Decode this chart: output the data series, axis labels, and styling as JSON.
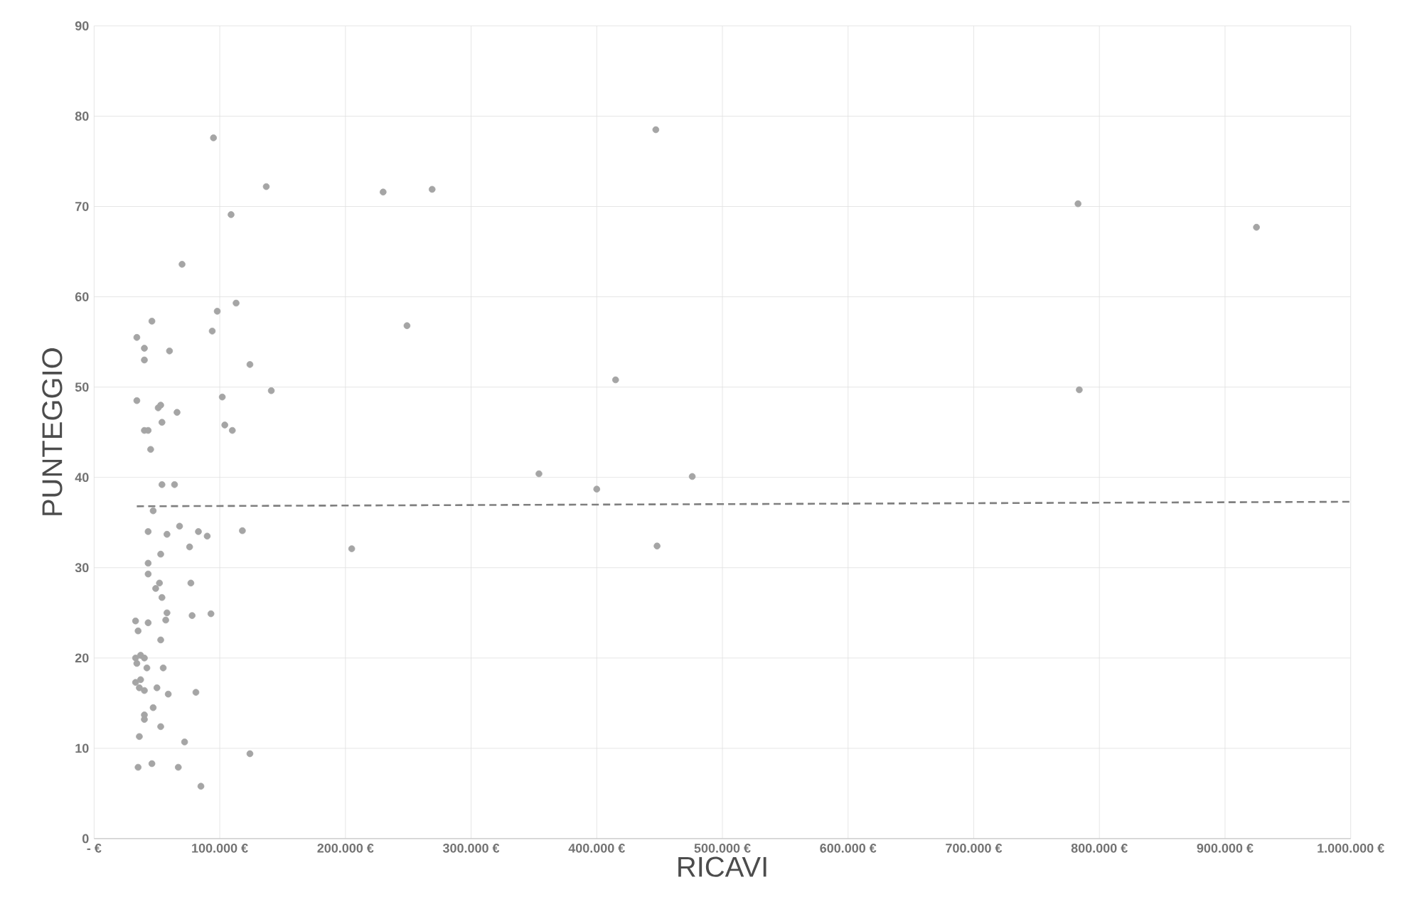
{
  "chart_data": {
    "type": "scatter",
    "xlabel": "RICAVI",
    "ylabel": "PUNTEGGIO",
    "xlim": [
      0,
      1000000
    ],
    "ylim": [
      0,
      90
    ],
    "xticks": [
      {
        "value": 0,
        "label": "- €"
      },
      {
        "value": 100000,
        "label": "100.000 €"
      },
      {
        "value": 200000,
        "label": "200.000 €"
      },
      {
        "value": 300000,
        "label": "300.000 €"
      },
      {
        "value": 400000,
        "label": "400.000 €"
      },
      {
        "value": 500000,
        "label": "500.000 €"
      },
      {
        "value": 600000,
        "label": "600.000 €"
      },
      {
        "value": 700000,
        "label": "700.000 €"
      },
      {
        "value": 800000,
        "label": "800.000 €"
      },
      {
        "value": 900000,
        "label": "900.000 €"
      },
      {
        "value": 1000000,
        "label": "1.000.000 €"
      }
    ],
    "yticks": [
      0,
      10,
      20,
      30,
      40,
      50,
      60,
      70,
      80,
      90
    ],
    "grid": true,
    "series": [
      {
        "color": "#a5a5a5",
        "marker": "circle",
        "x": [
          34000,
          40000,
          40000,
          46000,
          34000,
          60000,
          95000,
          137000,
          109000,
          70000,
          98000,
          113000,
          94000,
          124000,
          141000,
          102000,
          104000,
          110000,
          51000,
          53000,
          54000,
          66000,
          40000,
          43000,
          45000,
          54000,
          64000,
          47000,
          43000,
          58000,
          68000,
          83000,
          90000,
          118000,
          76000,
          53000,
          43000,
          43000,
          49000,
          52000,
          77000,
          54000,
          58000,
          57000,
          33000,
          43000,
          78000,
          93000,
          35000,
          53000,
          33000,
          37000,
          40000,
          34000,
          42000,
          55000,
          33000,
          37000,
          36000,
          40000,
          50000,
          59000,
          81000,
          47000,
          40000,
          40000,
          53000,
          36000,
          72000,
          124000,
          35000,
          46000,
          67000,
          85000,
          230000,
          269000,
          249000,
          205000,
          447000,
          415000,
          354000,
          400000,
          476000,
          448000,
          783000,
          784000,
          925000
        ],
        "values": [
          55.5,
          54.3,
          53.0,
          57.3,
          48.5,
          54.0,
          77.6,
          72.2,
          69.1,
          63.6,
          58.4,
          59.3,
          56.2,
          52.5,
          49.6,
          48.9,
          45.8,
          45.2,
          47.7,
          48.0,
          46.1,
          47.2,
          45.2,
          45.2,
          43.1,
          39.2,
          39.2,
          36.3,
          34.0,
          33.7,
          34.6,
          34.0,
          33.5,
          34.1,
          32.3,
          31.5,
          30.5,
          29.3,
          27.7,
          28.3,
          28.3,
          26.7,
          25.0,
          24.2,
          24.1,
          23.9,
          24.7,
          24.9,
          23.0,
          22.0,
          20.0,
          20.3,
          20.0,
          19.4,
          18.9,
          18.9,
          17.3,
          17.6,
          16.7,
          16.4,
          16.7,
          16.0,
          16.2,
          14.5,
          13.7,
          13.2,
          12.4,
          11.3,
          10.7,
          9.4,
          7.9,
          8.3,
          7.9,
          5.8,
          71.6,
          71.9,
          56.8,
          32.1,
          78.5,
          50.8,
          40.4,
          38.7,
          40.1,
          32.4,
          70.3,
          49.7,
          67.7
        ]
      },
      {
        "type": "line",
        "color": "#7f7f7f",
        "line_style": "dashed",
        "marker": "none",
        "x": [
          34000,
          1000000
        ],
        "values": [
          36.8,
          37.3
        ]
      }
    ]
  }
}
